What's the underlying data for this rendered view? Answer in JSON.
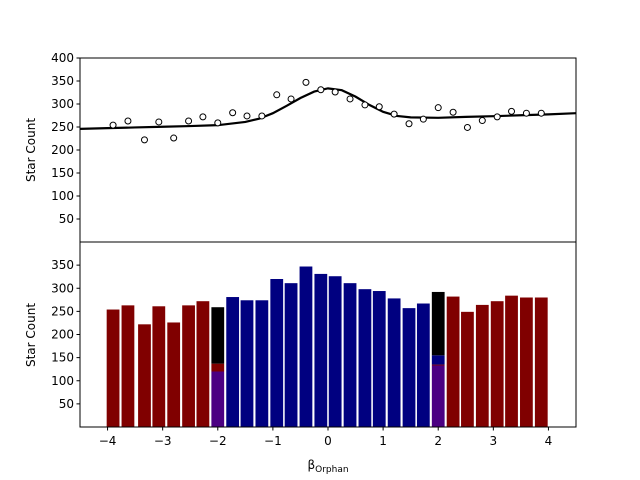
{
  "chart_data": [
    {
      "type": "scatter",
      "panel": "top",
      "ylabel": "Star Count",
      "ylim": [
        0,
        400
      ],
      "yticks": [
        50,
        100,
        150,
        200,
        250,
        300,
        350,
        400
      ],
      "xlim": [
        -4.5,
        4.5
      ],
      "points_x": [
        -3.9,
        -3.63,
        -3.33,
        -3.07,
        -2.8,
        -2.53,
        -2.27,
        -2.0,
        -1.73,
        -1.47,
        -1.2,
        -0.93,
        -0.67,
        -0.4,
        -0.13,
        0.13,
        0.4,
        0.67,
        0.93,
        1.2,
        1.47,
        1.73,
        2.0,
        2.27,
        2.53,
        2.8,
        3.07,
        3.33,
        3.6,
        3.87
      ],
      "points_y": [
        254,
        263,
        222,
        261,
        226,
        263,
        272,
        259,
        281,
        274,
        274,
        320,
        311,
        347,
        331,
        326,
        311,
        298,
        294,
        278,
        257,
        267,
        292,
        282,
        249,
        264,
        272,
        284,
        280,
        280
      ],
      "fit_line": {
        "x": [
          -4.5,
          -4.0,
          -3.5,
          -3.0,
          -2.5,
          -2.0,
          -1.5,
          -1.25,
          -1.0,
          -0.75,
          -0.5,
          -0.25,
          0.0,
          0.25,
          0.5,
          0.75,
          1.0,
          1.25,
          1.5,
          2.0,
          2.5,
          3.0,
          3.5,
          4.0,
          4.5
        ],
        "y": [
          246,
          247.5,
          249,
          250.5,
          252,
          254,
          261,
          268,
          280,
          296,
          313,
          327,
          334,
          330,
          316,
          298,
          283,
          274,
          271,
          270,
          272,
          273.5,
          275.5,
          277.5,
          280
        ]
      }
    },
    {
      "type": "bar",
      "panel": "bottom",
      "xlabel": "β_Orphan",
      "xlabel_main": "β",
      "xlabel_sub": "Orphan",
      "ylabel": "Star Count",
      "ylim": [
        0,
        400
      ],
      "xlim": [
        -4.5,
        4.5
      ],
      "yticks": [
        50,
        100,
        150,
        200,
        250,
        300,
        350
      ],
      "xticks": [
        -4,
        -3,
        -2,
        -1,
        0,
        1,
        2,
        3,
        4
      ],
      "xtick_labels": [
        "−4",
        "−3",
        "−2",
        "−1",
        "0",
        "1",
        "2",
        "3",
        "4"
      ],
      "bar_width": 0.25,
      "series": [
        {
          "color": "#800000",
          "x": [
            -3.9,
            -3.63,
            -3.33,
            -3.07,
            -2.8,
            -2.53,
            -2.27,
            2.27,
            2.53,
            2.8,
            3.07,
            3.33,
            3.6,
            3.87
          ],
          "values": [
            254,
            263,
            222,
            261,
            226,
            263,
            272,
            282,
            249,
            264,
            272,
            284,
            280,
            280
          ]
        },
        {
          "color": "#000080",
          "x": [
            -1.73,
            -1.47,
            -1.2,
            -0.93,
            -0.67,
            -0.4,
            -0.13,
            0.13,
            0.4,
            0.67,
            0.93,
            1.2,
            1.47,
            1.73
          ],
          "values": [
            281,
            274,
            274,
            320,
            311,
            347,
            331,
            326,
            311,
            298,
            294,
            278,
            257,
            267
          ]
        },
        {
          "stacked": true,
          "x": [
            -2.0,
            2.0
          ],
          "segments": [
            {
              "color": "#4b0082",
              "values": [
                120,
                133
              ]
            },
            {
              "color": "#800000",
              "values": [
                17,
                2
              ]
            },
            {
              "color": "#000080",
              "values": [
                0,
                20
              ]
            },
            {
              "color": "#000000",
              "values": [
                122,
                137
              ]
            }
          ]
        }
      ]
    }
  ],
  "colors": {
    "axes": "#000000",
    "marker_face": "#ffffff",
    "background": "#ffffff"
  }
}
